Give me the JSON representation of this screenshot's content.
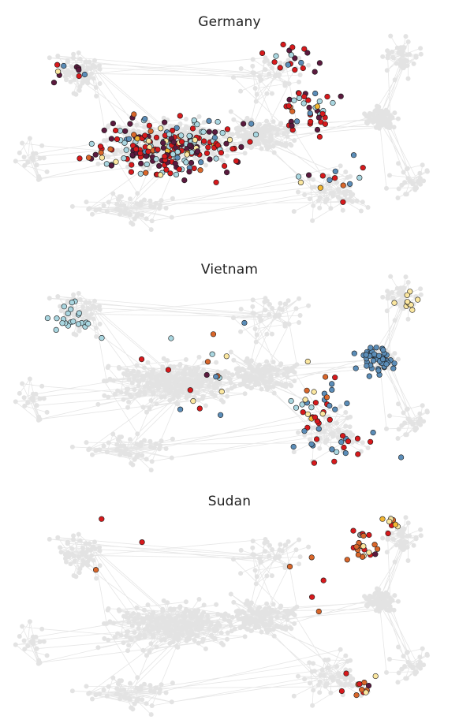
{
  "panels": [
    {
      "id": "germany",
      "title": "Germany",
      "highlight_mix": {
        "red": 0.34,
        "darkpurple": 0.24,
        "lightblue": 0.22,
        "steelblue": 0.1,
        "paleyellow": 0.05,
        "orange": 0.03,
        "gold": 0.02
      }
    },
    {
      "id": "vietnam",
      "title": "Vietnam",
      "highlight_mix": {
        "steelblue": 0.38,
        "red": 0.3,
        "lightblue": 0.1,
        "paleyellow": 0.1,
        "orange": 0.07,
        "gold": 0.03,
        "darkpurple": 0.02
      }
    },
    {
      "id": "sudan",
      "title": "Sudan",
      "highlight_mix": {
        "orange": 0.4,
        "paleyellow": 0.3,
        "red": 0.15,
        "gold": 0.06,
        "darkpurple": 0.05,
        "gray": 0.04
      }
    }
  ],
  "colors": {
    "background_node": "#e3e3e3",
    "edge": "#e6e6e6",
    "node_stroke": "#1a1a1a",
    "red": "#d7191c",
    "darkpurple": "#5b1a3e",
    "lightblue": "#a9d6e0",
    "steelblue": "#5b8db8",
    "paleyellow": "#fbe7a0",
    "orange": "#d9662a",
    "gold": "#f2b632",
    "gray": "#8c8c8c"
  }
}
